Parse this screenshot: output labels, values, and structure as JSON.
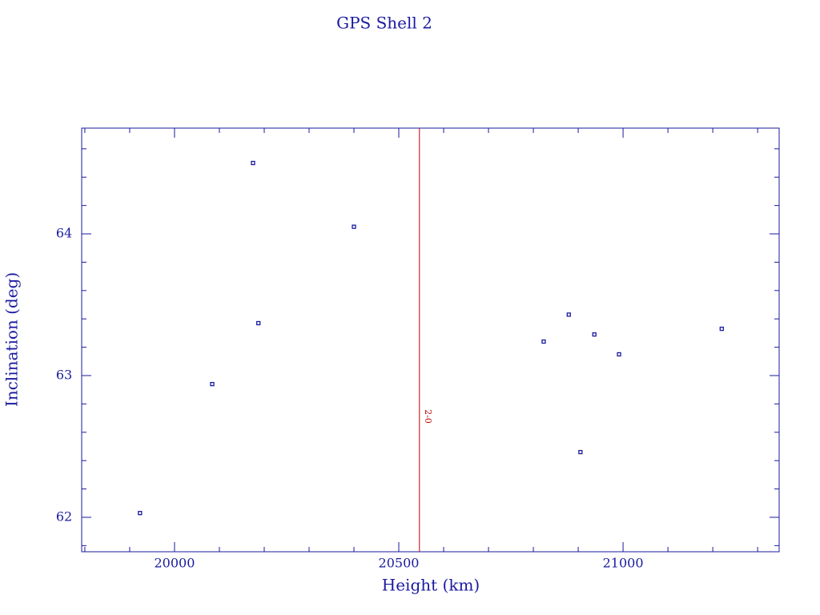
{
  "chart_data": {
    "type": "scatter",
    "title": "GPS Shell 2",
    "x_label": "Height (km)",
    "y_label": "Inclination (deg)",
    "x": [
      19923,
      20084,
      20175,
      20187,
      20400,
      20823,
      20879,
      20905,
      20936,
      20991,
      21220
    ],
    "values": [
      62.03,
      62.94,
      64.5,
      63.37,
      64.05,
      63.24,
      63.43,
      62.46,
      63.29,
      63.15,
      63.33
    ],
    "color": "#1a1aa0",
    "xlim": [
      19793,
      21348
    ],
    "xticks": [
      20000,
      20500,
      21000
    ],
    "xminorticks": [
      19800,
      19900,
      20100,
      20200,
      20300,
      20400,
      20600,
      20700,
      20800,
      20900,
      21100,
      21200,
      21300
    ],
    "ylim": [
      61.757,
      64.746
    ],
    "yticks": [
      62,
      63,
      64
    ],
    "yminorticks": [
      61.8,
      62.2,
      62.4,
      62.6,
      62.8,
      63.2,
      63.4,
      63.6,
      63.8,
      64.2,
      64.4,
      64.6
    ],
    "annotations": [
      {
        "text": "2-0",
        "x": 20546,
        "color": "#c00000"
      }
    ]
  }
}
